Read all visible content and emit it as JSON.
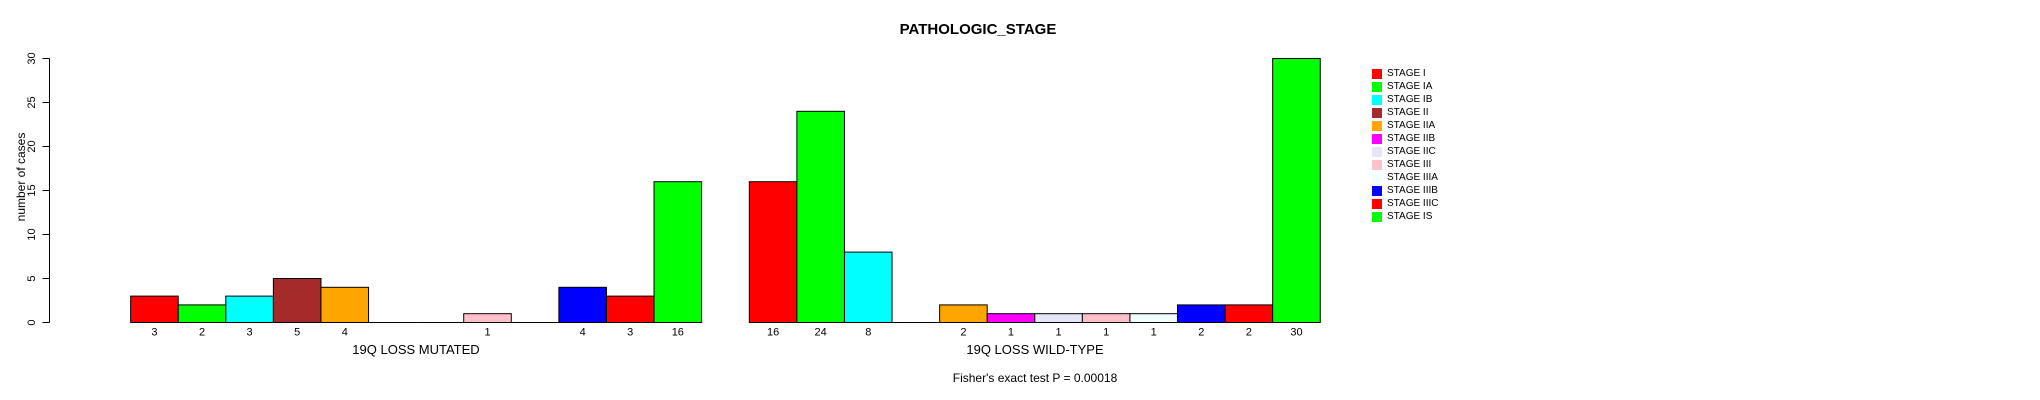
{
  "chart_data": {
    "type": "bar",
    "title": "PATHOLOGIC_STAGE",
    "xlabel": "",
    "ylabel": "number of cases",
    "ylim": [
      0,
      30
    ],
    "yticks": [
      0,
      5,
      10,
      15,
      20,
      25,
      30
    ],
    "grid": "off",
    "legend_position": "right",
    "annotation": "Fisher's exact test P = 0.00018",
    "categories": [
      "STAGE I",
      "STAGE IA",
      "STAGE IB",
      "STAGE II",
      "STAGE IIA",
      "STAGE IIB",
      "STAGE IIC",
      "STAGE III",
      "STAGE IIIA",
      "STAGE IIIB",
      "STAGE IIIC",
      "STAGE IS"
    ],
    "colors": [
      "#FF0000",
      "#00FF00",
      "#00FFFF",
      "#A52A2A",
      "#FFA500",
      "#FF00FF",
      "#E6E6FA",
      "#FFC0CB",
      "#F0FFFF",
      "#0000FF",
      "#FF0000",
      "#00FF00"
    ],
    "series": [
      {
        "name": "19Q LOSS MUTATED",
        "values": [
          3,
          2,
          3,
          5,
          4,
          0,
          0,
          1,
          0,
          4,
          3,
          16
        ]
      },
      {
        "name": "19Q LOSS WILD-TYPE",
        "values": [
          16,
          24,
          8,
          0,
          2,
          1,
          1,
          1,
          1,
          2,
          2,
          30
        ]
      }
    ],
    "bar_value_labels": {
      "shown": "nonzero values under each bar",
      "group1": [
        "3",
        "2",
        "3",
        "5",
        "4",
        "1",
        "4",
        "3",
        "16"
      ],
      "group2": [
        "16",
        "24",
        "8",
        "2",
        "1",
        "1",
        "1",
        "1",
        "2",
        "2",
        "30"
      ]
    }
  },
  "groups": [
    {
      "label": "19Q LOSS MUTATED"
    },
    {
      "label": "19Q LOSS WILD-TYPE"
    }
  ],
  "footer": {
    "text": "Fisher's exact test P = 0.00018"
  }
}
